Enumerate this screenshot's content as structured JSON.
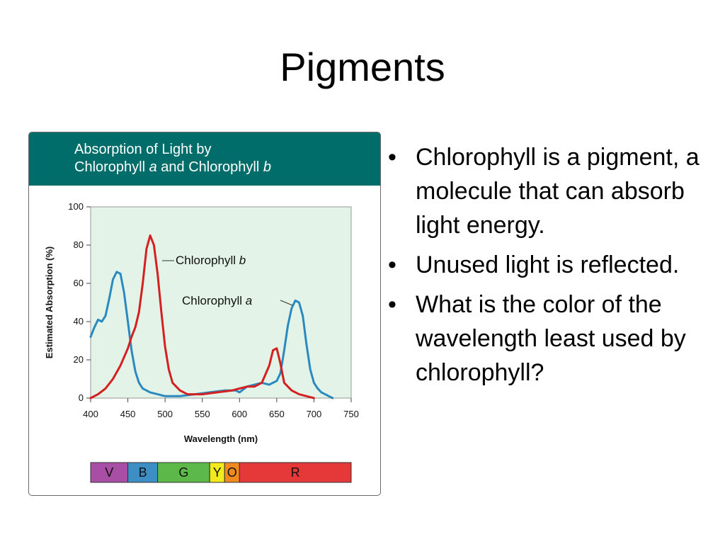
{
  "slide": {
    "title": "Pigments",
    "bullets": [
      "Chlorophyll is a pigment, a molecule that can absorb light energy.",
      "Unused light is reflected.",
      "What is the color of the wavelength least used by chlorophyll?"
    ],
    "bullet_symbol": "•"
  },
  "figure": {
    "title_line1": "Absorption of Light by",
    "title_line2_part1": "Chlorophyll ",
    "title_line2_a": "a",
    "title_line2_part2": " and Chlorophyll ",
    "title_line2_b": "b",
    "header_color": "#006d6a",
    "plot_bg_color": "#e3f3e7"
  },
  "chart_data": {
    "type": "line",
    "xlabel": "Wavelength (nm)",
    "ylabel": "Estimated Absorption (%)",
    "xlim": [
      400,
      750
    ],
    "ylim": [
      0,
      100
    ],
    "x_ticks": [
      400,
      450,
      500,
      550,
      600,
      650,
      700,
      750
    ],
    "y_ticks": [
      0,
      20,
      40,
      60,
      80,
      100
    ],
    "grid": false,
    "series": [
      {
        "name": "Chlorophyll a",
        "name_prefix": "Chlorophyll ",
        "name_letter": "a",
        "color": "#2a8ac0",
        "x": [
          400,
          405,
          410,
          415,
          420,
          425,
          430,
          435,
          440,
          445,
          450,
          455,
          460,
          465,
          470,
          480,
          490,
          500,
          520,
          540,
          560,
          580,
          595,
          600,
          610,
          620,
          630,
          640,
          650,
          655,
          660,
          665,
          670,
          675,
          680,
          685,
          690,
          695,
          700,
          705,
          710,
          715,
          720,
          725
        ],
        "y": [
          32,
          37,
          41,
          40,
          43,
          52,
          62,
          66,
          65,
          55,
          40,
          25,
          14,
          8,
          5,
          3,
          2,
          1,
          1,
          2,
          3,
          4,
          4,
          3,
          6,
          7,
          8,
          7,
          9,
          13,
          25,
          38,
          47,
          51,
          50,
          43,
          28,
          15,
          8,
          5,
          3,
          2,
          1,
          0
        ]
      },
      {
        "name": "Chlorophyll b",
        "name_prefix": "Chlorophyll ",
        "name_letter": "b",
        "color": "#d42020",
        "x": [
          400,
          410,
          420,
          430,
          440,
          450,
          455,
          460,
          465,
          470,
          475,
          480,
          485,
          490,
          495,
          500,
          505,
          510,
          520,
          530,
          550,
          570,
          590,
          600,
          610,
          620,
          630,
          640,
          645,
          650,
          655,
          660,
          670,
          680,
          690,
          700
        ],
        "y": [
          0,
          2,
          5,
          10,
          17,
          26,
          32,
          37,
          45,
          60,
          78,
          85,
          80,
          65,
          45,
          27,
          15,
          8,
          4,
          2,
          2,
          3,
          4,
          5,
          6,
          6,
          8,
          17,
          25,
          26,
          18,
          8,
          4,
          2,
          1,
          0
        ]
      }
    ],
    "annotations": [
      {
        "series": "Chlorophyll b",
        "text_prefix": "Chlorophyll ",
        "text_letter": "b"
      },
      {
        "series": "Chlorophyll a",
        "text_prefix": "Chlorophyll ",
        "text_letter": "a"
      }
    ],
    "color_bands": [
      {
        "label": "V",
        "start": 400,
        "end": 450,
        "color": "#a84ea4"
      },
      {
        "label": "B",
        "start": 450,
        "end": 490,
        "color": "#3c8ec4"
      },
      {
        "label": "G",
        "start": 490,
        "end": 560,
        "color": "#5db84a"
      },
      {
        "label": "Y",
        "start": 560,
        "end": 580,
        "color": "#f2ea1b"
      },
      {
        "label": "O",
        "start": 580,
        "end": 600,
        "color": "#f08a20"
      },
      {
        "label": "R",
        "start": 600,
        "end": 750,
        "color": "#e53838"
      }
    ]
  }
}
